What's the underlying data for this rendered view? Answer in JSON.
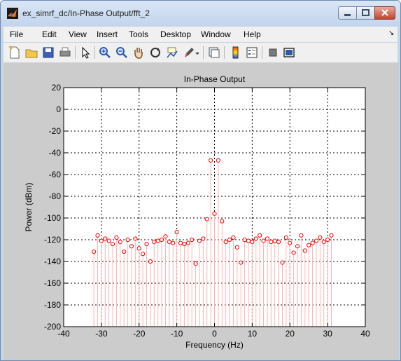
{
  "window": {
    "title": "ex_simrf_dc/In-Phase Output/fft_2"
  },
  "menu": {
    "items": [
      "File",
      "Edit",
      "View",
      "Insert",
      "Tools",
      "Desktop",
      "Window",
      "Help"
    ],
    "overflow_arrow": "↘"
  },
  "toolbar": {
    "icons": [
      "new-figure-icon",
      "open-file-icon",
      "save-icon",
      "print-icon",
      "pointer-icon",
      "zoom-in-icon",
      "zoom-out-icon",
      "pan-hand-icon",
      "rotate-3d-icon",
      "data-cursor-icon",
      "brush-icon",
      "brush-dropdown-icon",
      "link-plot-icon",
      "colorbar-icon",
      "legend-icon",
      "hide-plot-tools-icon",
      "show-plot-tools-icon"
    ]
  },
  "colors": {
    "stem": "#ff0000",
    "stem_line": "#ffb3b3",
    "figure_bg": "#cccccc",
    "axes_bg": "#ffffff"
  },
  "chart_data": {
    "type": "scatter",
    "style": "stem",
    "title": "In-Phase Output",
    "xlabel": "Frequency (Hz)",
    "ylabel": "Power (dBm)",
    "xlim": [
      -40,
      40
    ],
    "ylim": [
      -200,
      20
    ],
    "xticks": [
      -40,
      -30,
      -20,
      -10,
      0,
      10,
      20,
      30,
      40
    ],
    "yticks": [
      20,
      0,
      -20,
      -40,
      -60,
      -80,
      -100,
      -120,
      -140,
      -160,
      -180,
      -200
    ],
    "grid": true,
    "series": [
      {
        "x": [
          -32,
          -31,
          -30,
          -29,
          -28,
          -27,
          -26,
          -25,
          -24,
          -23,
          -22,
          -21,
          -20,
          -19,
          -18,
          -17,
          -16,
          -15,
          -14,
          -13,
          -12,
          -11,
          -10,
          -9,
          -8,
          -7,
          -6,
          -5,
          -4,
          -3,
          -2,
          -1,
          0,
          1,
          2,
          3,
          4,
          5,
          6,
          7,
          8,
          9,
          10,
          11,
          12,
          13,
          14,
          15,
          16,
          17,
          18,
          19,
          20,
          21,
          22,
          23,
          24,
          25,
          26,
          27,
          28,
          29,
          30,
          31
        ],
        "y": [
          -131,
          -116,
          -121,
          -119,
          -121,
          -124,
          -118,
          -122,
          -131,
          -120,
          -126,
          -119,
          -128,
          -133,
          -124,
          -140,
          -122,
          -121,
          -120,
          -117,
          -122,
          -123,
          -113,
          -123,
          -124,
          -123,
          -120,
          -142,
          -121,
          -119,
          -101,
          -47,
          -96,
          -47,
          -103,
          -122,
          -120,
          -118,
          -127,
          -141,
          -120,
          -121,
          -122,
          -119,
          -116,
          -121,
          -119,
          -122,
          -121,
          -122,
          -141,
          -118,
          -123,
          -132,
          -126,
          -116,
          -130,
          -125,
          -123,
          -121,
          -118,
          -122,
          -120,
          -116
        ]
      }
    ]
  }
}
